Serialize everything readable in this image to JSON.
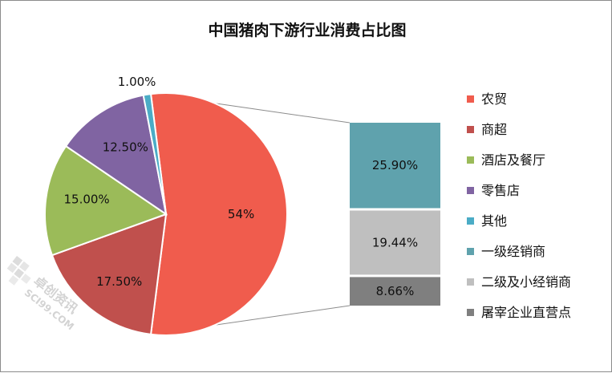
{
  "chart_data": {
    "type": "pie",
    "title": "中国猪肉下游行业消费占比图",
    "main_pie": {
      "slices": [
        {
          "name": "农贸",
          "value": 54,
          "label": "54%",
          "color": "#F05C4D"
        },
        {
          "name": "商超",
          "value": 17.5,
          "label": "17.50%",
          "color": "#C0504D"
        },
        {
          "name": "酒店及餐厅",
          "value": 15,
          "label": "15.00%",
          "color": "#9BBB59"
        },
        {
          "name": "零售店",
          "value": 12.5,
          "label": "12.50%",
          "color": "#8064A2"
        },
        {
          "name": "其他",
          "value": 1,
          "label": "1.00%",
          "color": "#4BACC6"
        }
      ]
    },
    "breakdown_bar": {
      "of_slice": "农贸",
      "segments": [
        {
          "name": "一级经销商",
          "value": 25.9,
          "label": "25.90%",
          "color": "#5FA2AD"
        },
        {
          "name": "二级及小经销商",
          "value": 19.44,
          "label": "19.44%",
          "color": "#BFBFBF"
        },
        {
          "name": "屠宰企业直营点",
          "value": 8.66,
          "label": "8.66%",
          "color": "#7F7F7F"
        }
      ]
    },
    "legend": {
      "placement": "right",
      "entries": [
        {
          "name": "农贸",
          "color": "#F05C4D"
        },
        {
          "name": "商超",
          "color": "#C0504D"
        },
        {
          "name": "酒店及餐厅",
          "color": "#9BBB59"
        },
        {
          "name": "零售店",
          "color": "#8064A2"
        },
        {
          "name": "其他",
          "color": "#4BACC6"
        },
        {
          "name": "一级经销商",
          "color": "#5FA2AD"
        },
        {
          "name": "二级及小经销商",
          "color": "#BFBFBF"
        },
        {
          "name": "屠宰企业直营点",
          "color": "#7F7F7F"
        }
      ]
    }
  },
  "watermark": {
    "text_cn": "卓创资讯",
    "text_en": "SCI99.COM"
  }
}
